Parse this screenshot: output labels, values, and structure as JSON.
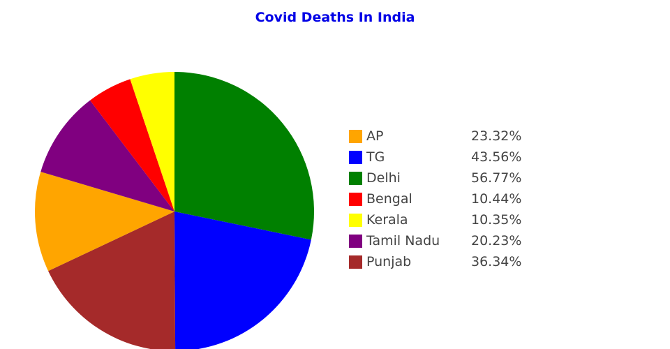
{
  "chart_data": {
    "type": "pie",
    "title": "Covid Deaths In India",
    "title_color": "#0000e6",
    "categories": [
      "AP",
      "TG",
      "Delhi",
      "Bengal",
      "Kerala",
      "Tamil Nadu",
      "Punjab"
    ],
    "values": [
      23.32,
      43.56,
      56.77,
      10.44,
      10.35,
      20.23,
      36.34
    ],
    "value_labels": [
      "23.32%",
      "43.56%",
      "56.77%",
      "10.44%",
      "10.35%",
      "20.23%",
      "36.34%"
    ],
    "colors": [
      "#ffa500",
      "#0000ff",
      "#008000",
      "#ff0000",
      "#ffff00",
      "#800080",
      "#a52a2a"
    ],
    "legend_position": "right"
  }
}
